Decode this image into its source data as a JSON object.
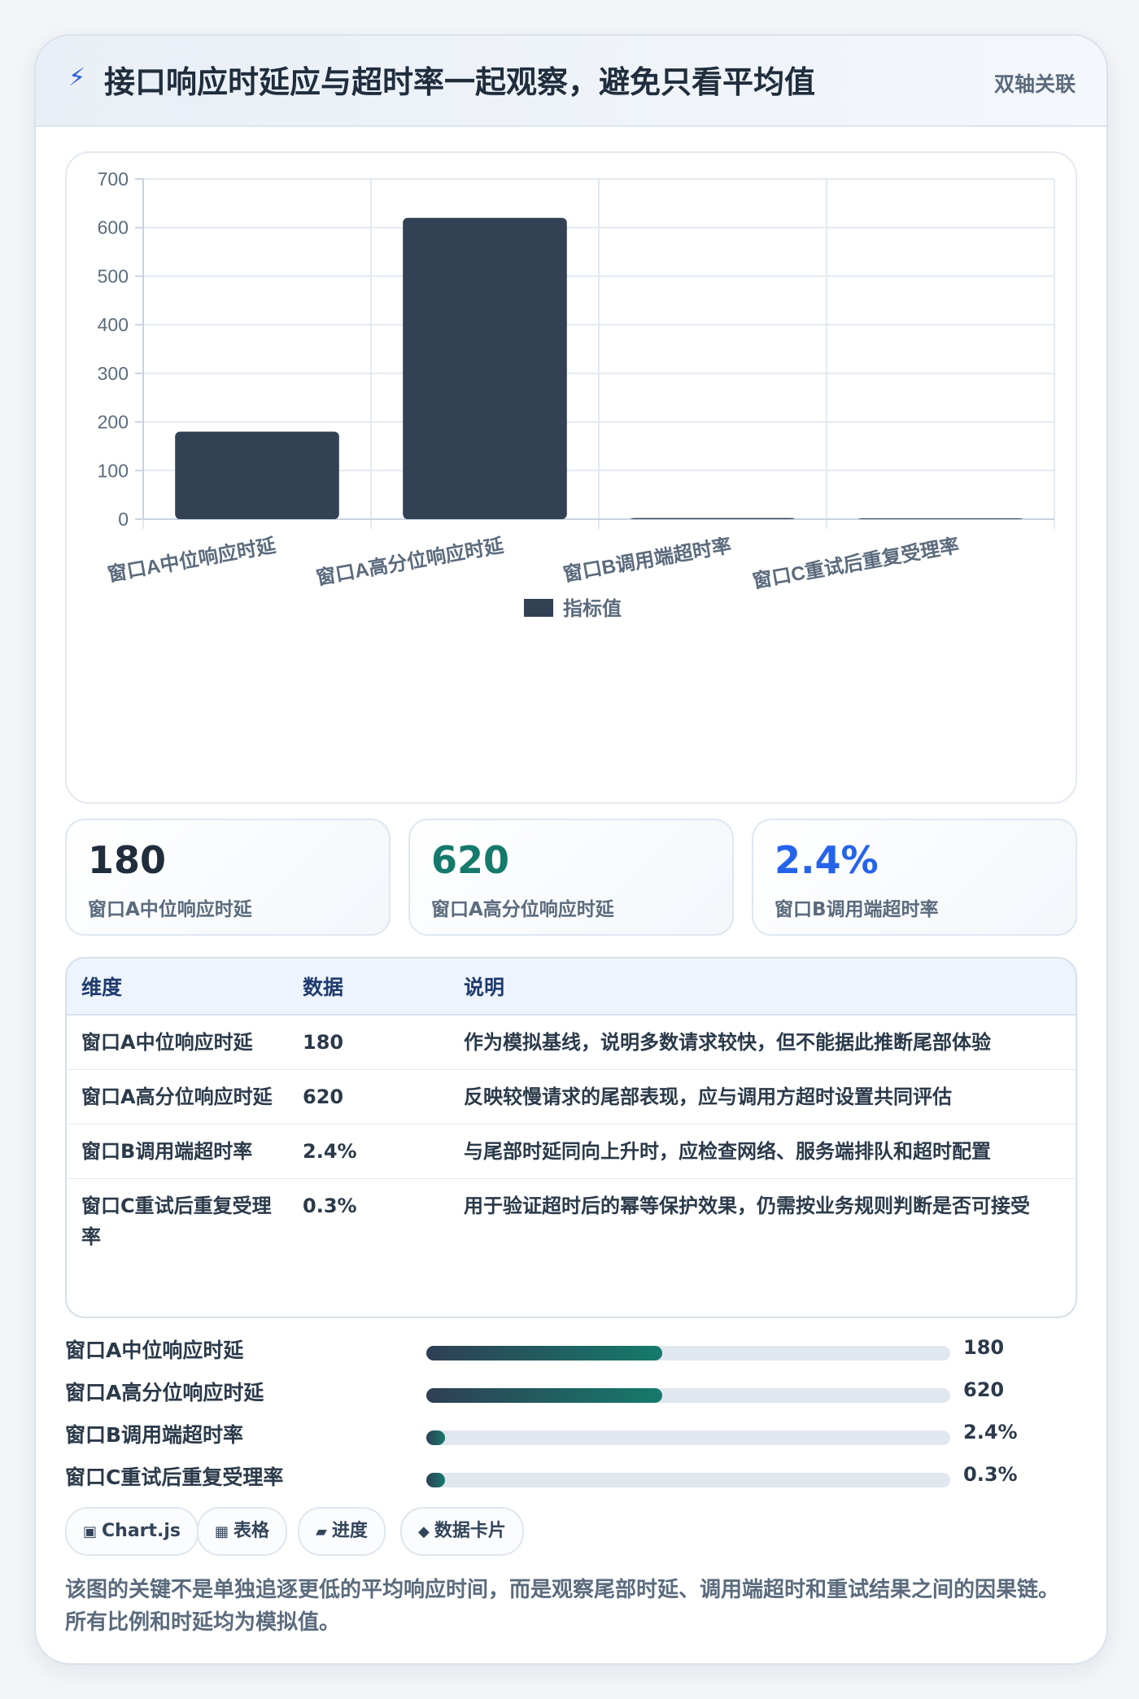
{
  "header": {
    "icon": "lightning-icon",
    "title": "接口响应时延应与超时率一起观察，避免只看平均值",
    "tag": "双轴关联"
  },
  "chart_data": {
    "type": "bar",
    "categories": [
      "窗口A中位响应时延",
      "窗口A高分位响应时延",
      "窗口B调用端超时率",
      "窗口C重试后重复受理率"
    ],
    "series": [
      {
        "name": "指标值",
        "values": [
          180,
          620,
          2.4,
          0.3
        ]
      }
    ],
    "ylim": [
      0,
      700
    ],
    "yticks": [
      0,
      100,
      200,
      300,
      400,
      500,
      600,
      700
    ],
    "grid": true,
    "legend": "bottom",
    "color": "#334155"
  },
  "stats": [
    {
      "value": "180",
      "label": "窗口A中位响应时延",
      "color": "#1f2d3d"
    },
    {
      "value": "620",
      "label": "窗口A高分位响应时延",
      "color": "#157a6b"
    },
    {
      "value": "2.4%",
      "label": "窗口B调用端超时率",
      "color": "#2563eb"
    }
  ],
  "table": {
    "headers": [
      "维度",
      "数据",
      "说明"
    ],
    "rows": [
      [
        "窗口A中位响应时延",
        "180",
        "作为模拟基线，说明多数请求较快，但不能据此推断尾部体验"
      ],
      [
        "窗口A高分位响应时延",
        "620",
        "反映较慢请求的尾部表现，应与调用方超时设置共同评估"
      ],
      [
        "窗口B调用端超时率",
        "2.4%",
        "与尾部时延同向上升时，应检查网络、服务端排队和超时配置"
      ],
      [
        "窗口C重试后重复受理率",
        "0.3%",
        "用于验证超时后的幂等保护效果，仍需按业务规则判断是否可接受"
      ]
    ]
  },
  "progress": [
    {
      "label": "窗口A中位响应时延",
      "value": "180",
      "fraction": 0.45
    },
    {
      "label": "窗口A高分位响应时延",
      "value": "620",
      "fraction": 0.45
    },
    {
      "label": "窗口B调用端超时率",
      "value": "2.4%",
      "fraction": 0.03
    },
    {
      "label": "窗口C重试后重复受理率",
      "value": "0.3%",
      "fraction": 0.03
    }
  ],
  "chips": [
    {
      "icon": "chart-icon",
      "glyph": "▣",
      "label": "Chart.js"
    },
    {
      "icon": "table-icon",
      "glyph": "▦",
      "label": "表格"
    },
    {
      "icon": "progress-icon",
      "glyph": "▰",
      "label": "进度"
    },
    {
      "icon": "card-icon",
      "glyph": "◆",
      "label": "数据卡片"
    }
  ],
  "note": "该图的关键不是单独追逐更低的平均响应时间，而是观察尾部时延、调用端超时和重试结果之间的因果链。所有比例和时延均为模拟值。"
}
